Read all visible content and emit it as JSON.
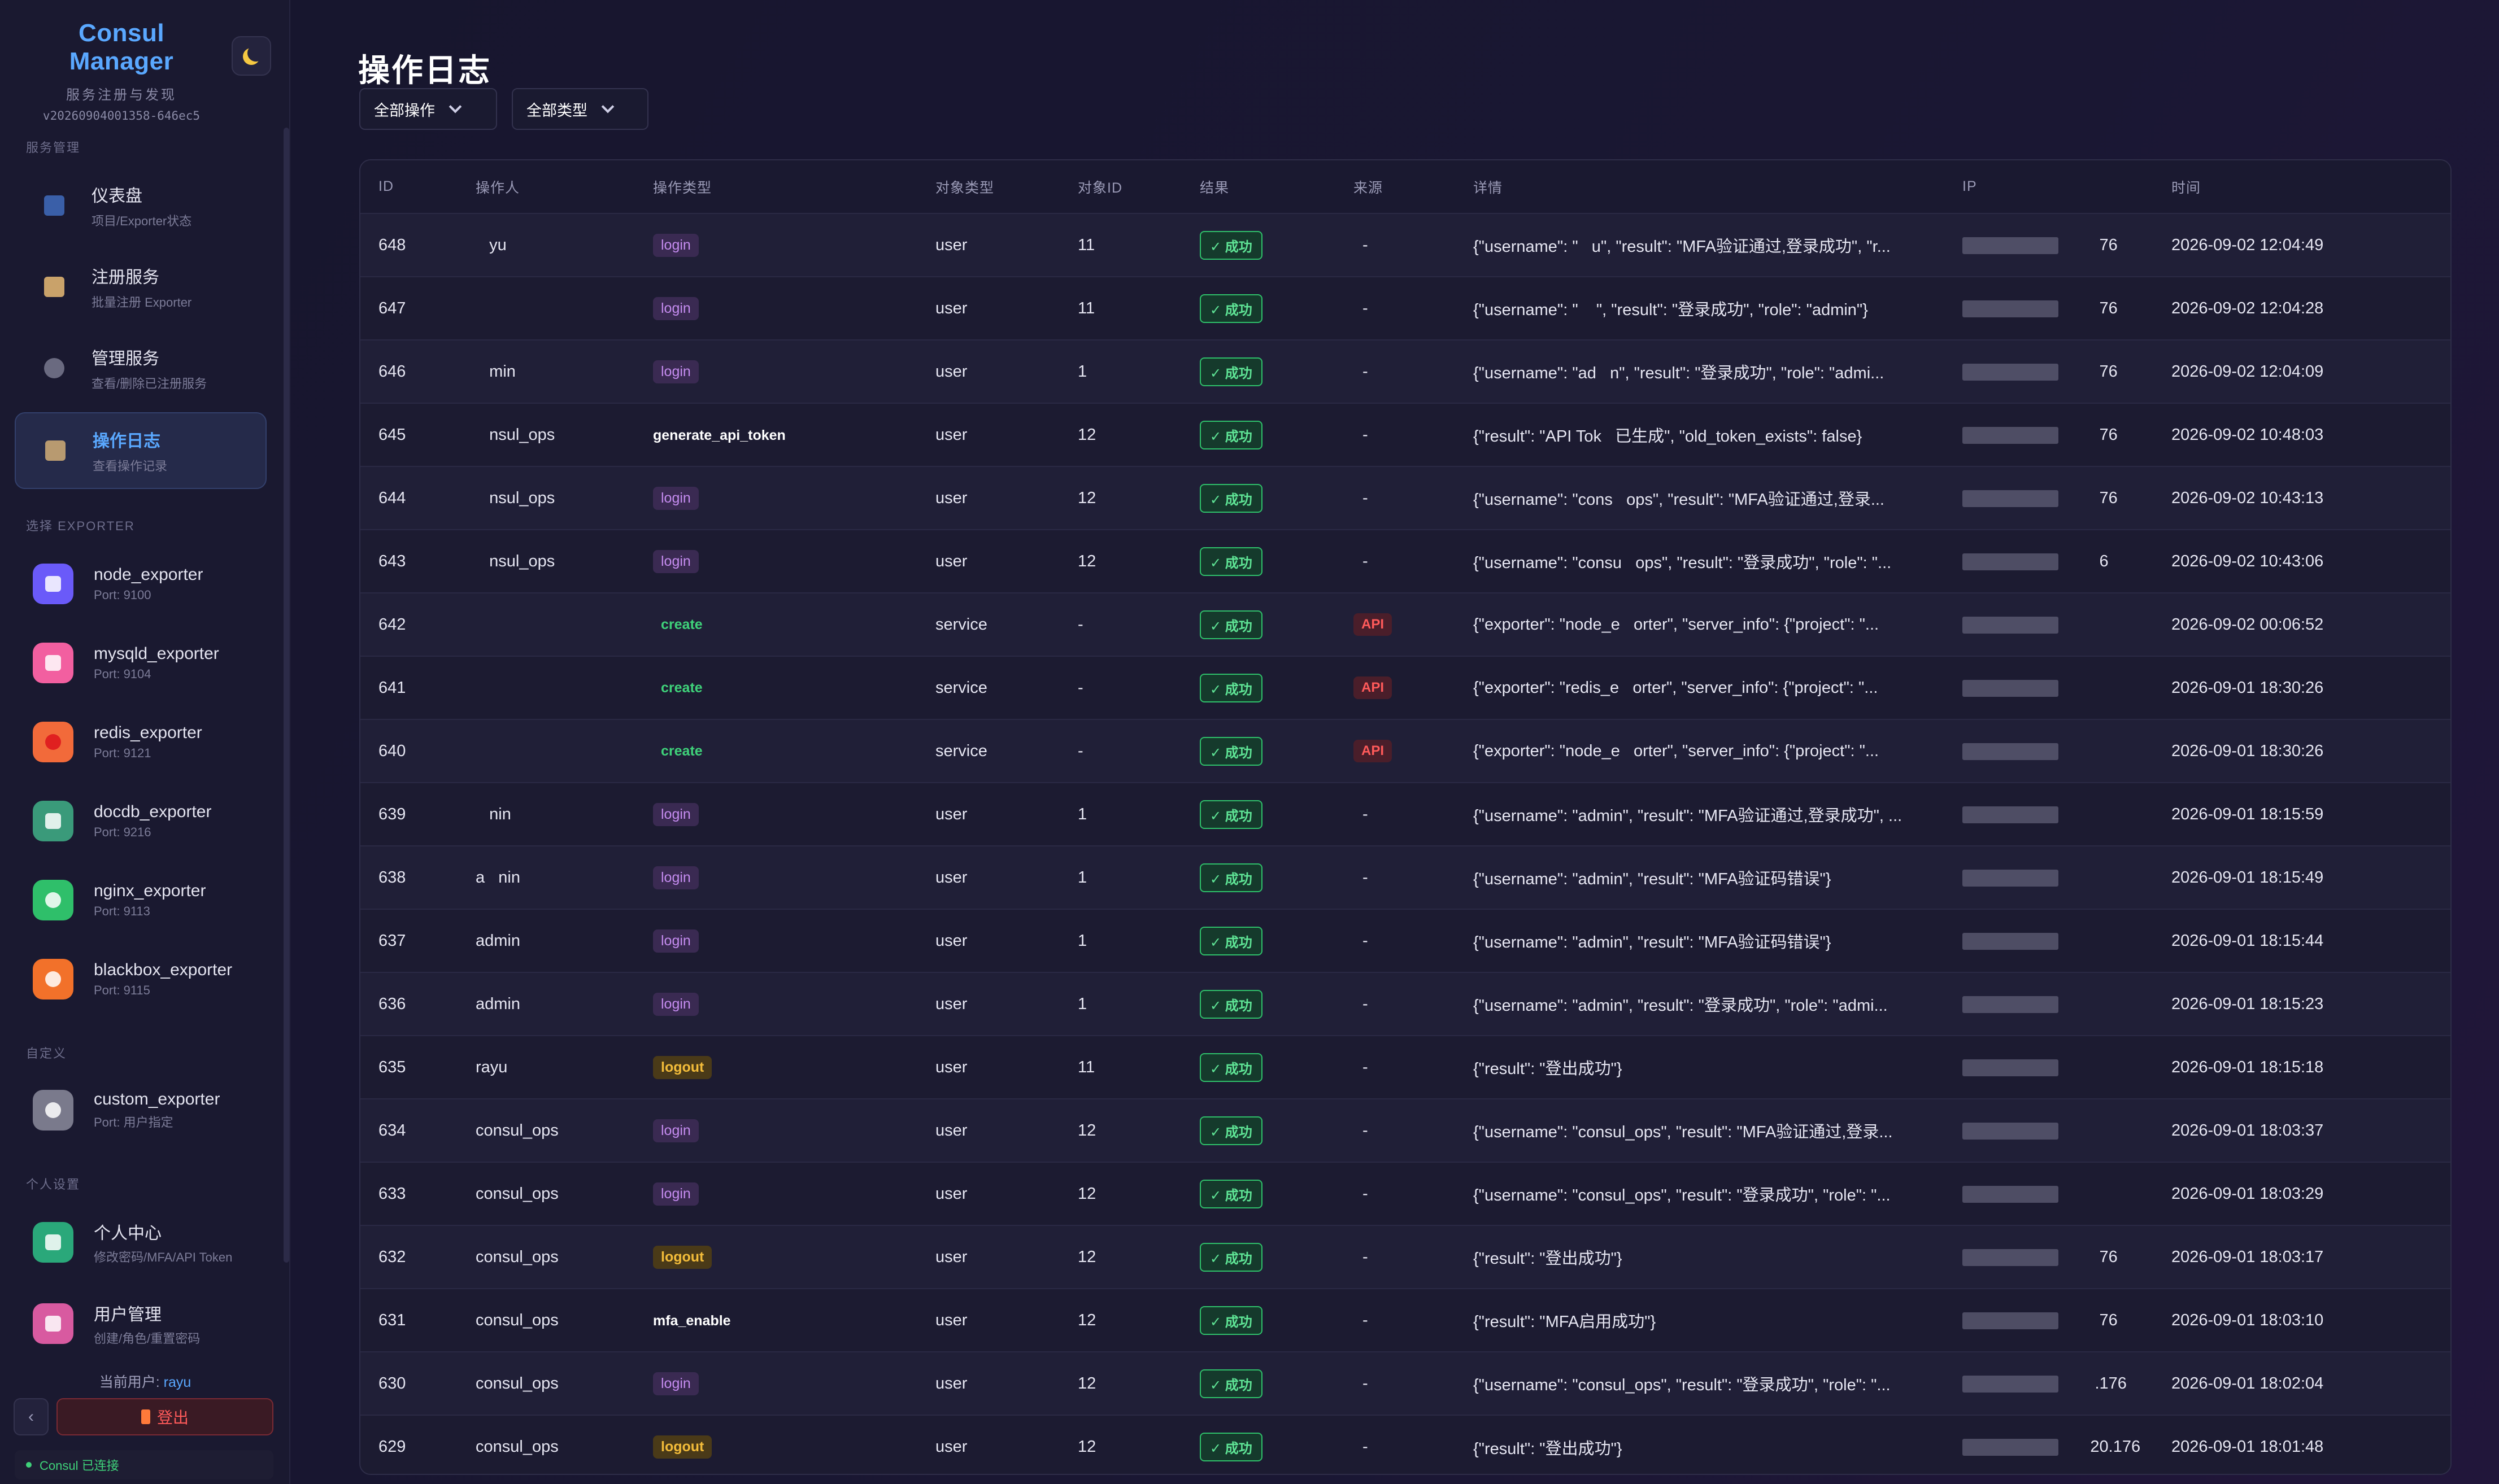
{
  "sidebar": {
    "brand_title": "Consul Manager",
    "brand_subtitle": "服务注册与发现",
    "version": "v20260904001358-646ec5",
    "section_service": "服务管理",
    "nav": [
      {
        "title": "仪表盘",
        "sub": "项目/Exporter状态",
        "icon": "dashboard-icon"
      },
      {
        "title": "注册服务",
        "sub": "批量注册 Exporter",
        "icon": "register-icon"
      },
      {
        "title": "管理服务",
        "sub": "查看/删除已注册服务",
        "icon": "gear-icon"
      },
      {
        "title": "操作日志",
        "sub": "查看操作记录",
        "icon": "log-icon"
      }
    ],
    "section_exporter": "选择 EXPORTER",
    "exporters": [
      {
        "name": "node_exporter",
        "port": "Port: 9100",
        "color": "#6a5af9"
      },
      {
        "name": "mysqld_exporter",
        "port": "Port: 9104",
        "color": "#f25fa0"
      },
      {
        "name": "redis_exporter",
        "port": "Port: 9121",
        "color": "#f26a3a"
      },
      {
        "name": "docdb_exporter",
        "port": "Port: 9216",
        "color": "#3a9a7a"
      },
      {
        "name": "nginx_exporter",
        "port": "Port: 9113",
        "color": "#2fbf6a"
      },
      {
        "name": "blackbox_exporter",
        "port": "Port: 9115",
        "color": "#f2712a"
      }
    ],
    "section_custom": "自定义",
    "custom": {
      "name": "custom_exporter",
      "port": "Port: 用户指定",
      "color": "#7a7a8c"
    },
    "section_personal": "个人设置",
    "personal": [
      {
        "title": "个人中心",
        "sub": "修改密码/MFA/API Token",
        "color": "#2aa87a"
      },
      {
        "title": "用户管理",
        "sub": "创建/角色/重置密码",
        "color": "#d85aa0"
      }
    ],
    "current_user_label": "当前用户:",
    "current_user": "rayu",
    "logout_label": "登出",
    "collapse_label": "‹",
    "connection": "Consul 已连接"
  },
  "main": {
    "title": "操作日志",
    "filter_action": "全部操作",
    "filter_type": "全部类型",
    "columns": [
      "ID",
      "操作人",
      "操作类型",
      "对象类型",
      "对象ID",
      "结果",
      "来源",
      "详情",
      "IP",
      "时间"
    ],
    "rows": [
      {
        "id": "648",
        "user": "   yu",
        "op": "login",
        "otype": "user",
        "oid": "11",
        "res": "✓ 成功",
        "src": "-",
        "detail": "{\"username\": \"   u\", \"result\": \"MFA验证通过,登录成功\", \"r...",
        "ip": "         76",
        "time": "2026-09-02 12:04:49"
      },
      {
        "id": "647",
        "user": "",
        "op": "login",
        "otype": "user",
        "oid": "11",
        "res": "✓ 成功",
        "src": "-",
        "detail": "{\"username\": \"    \", \"result\": \"登录成功\", \"role\": \"admin\"}",
        "ip": "         76",
        "time": "2026-09-02 12:04:28"
      },
      {
        "id": "646",
        "user": "   min",
        "op": "login",
        "otype": "user",
        "oid": "1",
        "res": "✓ 成功",
        "src": "-",
        "detail": "{\"username\": \"ad   n\", \"result\": \"登录成功\", \"role\": \"admi...",
        "ip": "         76",
        "time": "2026-09-02 12:04:09"
      },
      {
        "id": "645",
        "user": "   nsul_ops",
        "op": "generate_api_token",
        "otype": "user",
        "oid": "12",
        "res": "✓ 成功",
        "src": "-",
        "detail": "{\"result\": \"API Tok   已生成\", \"old_token_exists\": false}",
        "ip": "         76",
        "time": "2026-09-02 10:48:03"
      },
      {
        "id": "644",
        "user": "   nsul_ops",
        "op": "login",
        "otype": "user",
        "oid": "12",
        "res": "✓ 成功",
        "src": "-",
        "detail": "{\"username\": \"cons   ops\", \"result\": \"MFA验证通过,登录...",
        "ip": "         76",
        "time": "2026-09-02 10:43:13"
      },
      {
        "id": "643",
        "user": "   nsul_ops",
        "op": "login",
        "otype": "user",
        "oid": "12",
        "res": "✓ 成功",
        "src": "-",
        "detail": "{\"username\": \"consu   ops\", \"result\": \"登录成功\", \"role\": \"...",
        "ip": "         6",
        "time": "2026-09-02 10:43:06"
      },
      {
        "id": "642",
        "user": "",
        "op": "create",
        "otype": "service",
        "oid": "-",
        "res": "✓ 成功",
        "src": "API",
        "detail": "{\"exporter\": \"node_e   orter\", \"server_info\": {\"project\": \"...",
        "ip": "",
        "time": "2026-09-02 00:06:52"
      },
      {
        "id": "641",
        "user": "",
        "op": "create",
        "otype": "service",
        "oid": "-",
        "res": "✓ 成功",
        "src": "API",
        "detail": "{\"exporter\": \"redis_e   orter\", \"server_info\": {\"project\": \"...",
        "ip": "",
        "time": "2026-09-01 18:30:26"
      },
      {
        "id": "640",
        "user": "",
        "op": "create",
        "otype": "service",
        "oid": "-",
        "res": "✓ 成功",
        "src": "API",
        "detail": "{\"exporter\": \"node_e   orter\", \"server_info\": {\"project\": \"...",
        "ip": "",
        "time": "2026-09-01 18:30:26"
      },
      {
        "id": "639",
        "user": "   nin",
        "op": "login",
        "otype": "user",
        "oid": "1",
        "res": "✓ 成功",
        "src": "-",
        "detail": "{\"username\": \"admin\", \"result\": \"MFA验证通过,登录成功\", ...",
        "ip": "",
        "time": "2026-09-01 18:15:59"
      },
      {
        "id": "638",
        "user": "a   nin",
        "op": "login",
        "otype": "user",
        "oid": "1",
        "res": "✓ 成功",
        "src": "-",
        "detail": "{\"username\": \"admin\", \"result\": \"MFA验证码错误\"}",
        "ip": "",
        "time": "2026-09-01 18:15:49"
      },
      {
        "id": "637",
        "user": "admin",
        "op": "login",
        "otype": "user",
        "oid": "1",
        "res": "✓ 成功",
        "src": "-",
        "detail": "{\"username\": \"admin\", \"result\": \"MFA验证码错误\"}",
        "ip": "",
        "time": "2026-09-01 18:15:44"
      },
      {
        "id": "636",
        "user": "admin",
        "op": "login",
        "otype": "user",
        "oid": "1",
        "res": "✓ 成功",
        "src": "-",
        "detail": "{\"username\": \"admin\", \"result\": \"登录成功\", \"role\": \"admi...",
        "ip": "",
        "time": "2026-09-01 18:15:23"
      },
      {
        "id": "635",
        "user": "rayu",
        "op": "logout",
        "otype": "user",
        "oid": "11",
        "res": "✓ 成功",
        "src": "-",
        "detail": "{\"result\": \"登出成功\"}",
        "ip": "",
        "time": "2026-09-01 18:15:18"
      },
      {
        "id": "634",
        "user": "consul_ops",
        "op": "login",
        "otype": "user",
        "oid": "12",
        "res": "✓ 成功",
        "src": "-",
        "detail": "{\"username\": \"consul_ops\", \"result\": \"MFA验证通过,登录...",
        "ip": "",
        "time": "2026-09-01 18:03:37"
      },
      {
        "id": "633",
        "user": "consul_ops",
        "op": "login",
        "otype": "user",
        "oid": "12",
        "res": "✓ 成功",
        "src": "-",
        "detail": "{\"username\": \"consul_ops\", \"result\": \"登录成功\", \"role\": \"...",
        "ip": "",
        "time": "2026-09-01 18:03:29"
      },
      {
        "id": "632",
        "user": "consul_ops",
        "op": "logout",
        "otype": "user",
        "oid": "12",
        "res": "✓ 成功",
        "src": "-",
        "detail": "{\"result\": \"登出成功\"}",
        "ip": "         76",
        "time": "2026-09-01 18:03:17"
      },
      {
        "id": "631",
        "user": "consul_ops",
        "op": "mfa_enable",
        "otype": "user",
        "oid": "12",
        "res": "✓ 成功",
        "src": "-",
        "detail": "{\"result\": \"MFA启用成功\"}",
        "ip": "         76",
        "time": "2026-09-01 18:03:10"
      },
      {
        "id": "630",
        "user": "consul_ops",
        "op": "login",
        "otype": "user",
        "oid": "12",
        "res": "✓ 成功",
        "src": "-",
        "detail": "{\"username\": \"consul_ops\", \"result\": \"登录成功\", \"role\": \"...",
        "ip": "        .176",
        "time": "2026-09-01 18:02:04"
      },
      {
        "id": "629",
        "user": "consul_ops",
        "op": "logout",
        "otype": "user",
        "oid": "12",
        "res": "✓ 成功",
        "src": "-",
        "detail": "{\"result\": \"登出成功\"}",
        "ip": "       20.176",
        "time": "2026-09-01 18:01:48"
      }
    ]
  }
}
